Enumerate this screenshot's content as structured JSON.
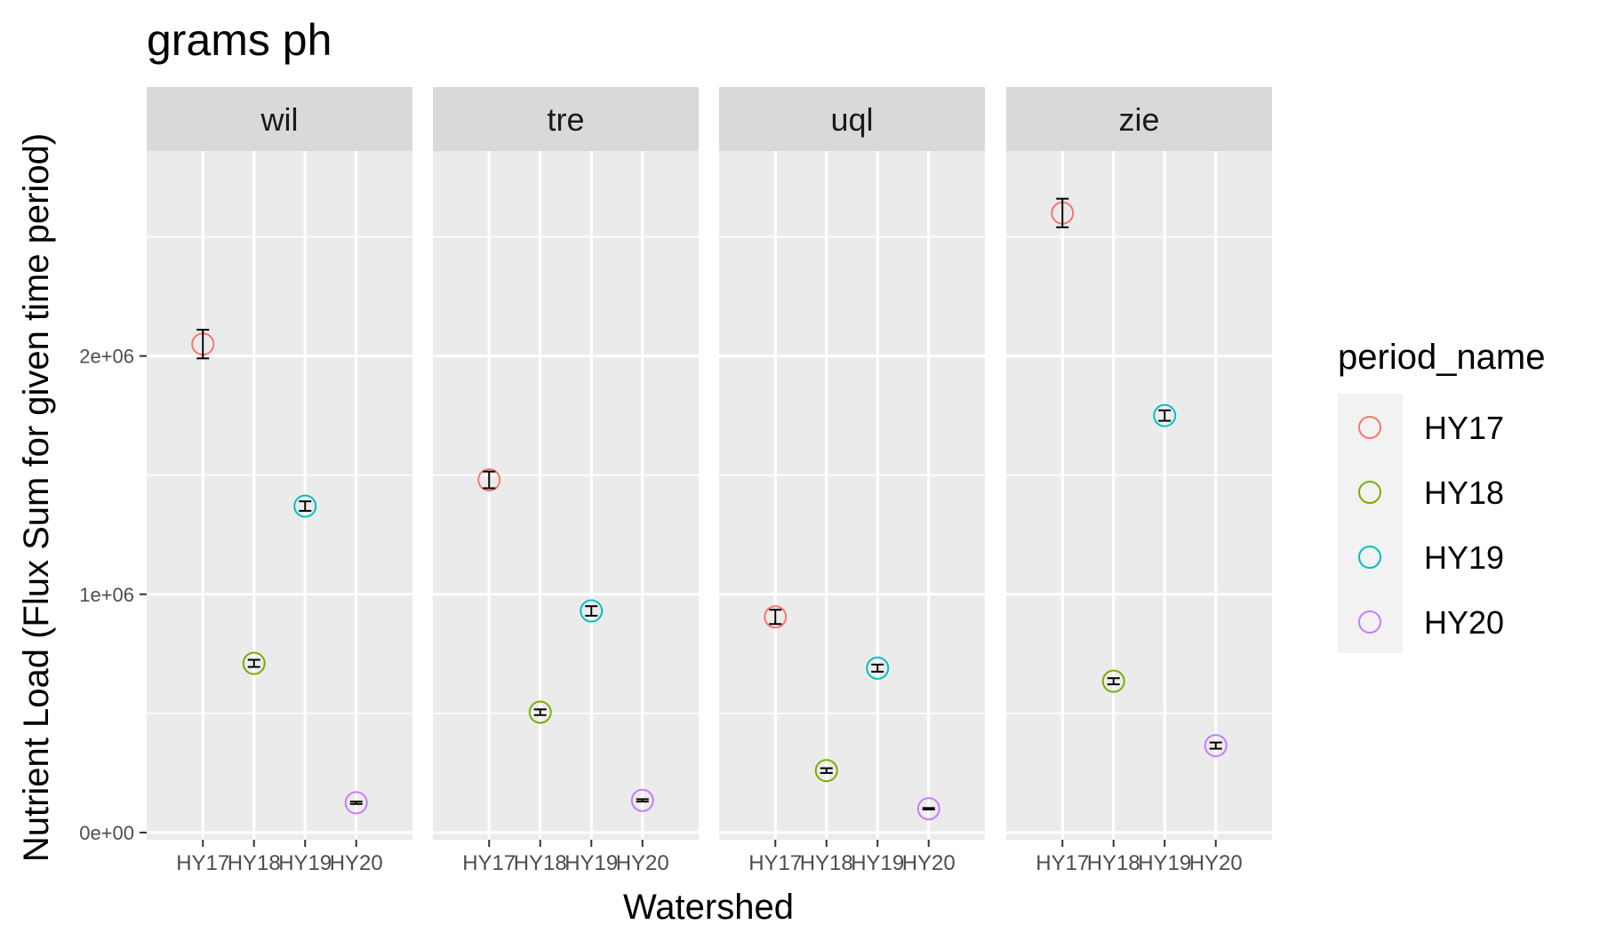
{
  "chart_data": {
    "type": "scatter",
    "title": "grams ph",
    "xlabel": "Watershed",
    "ylabel": "Nutrient Load (Flux Sum for given time period)",
    "ylim": [
      -30000,
      2860000
    ],
    "y_ticks": [
      0,
      1000000,
      2000000
    ],
    "y_tick_labels": [
      "0e+00",
      "1e+06",
      "2e+06"
    ],
    "y_minor_ticks": [
      500000,
      1500000,
      2500000
    ],
    "categories": [
      "HY17",
      "HY18",
      "HY19",
      "HY20"
    ],
    "grid": true,
    "legend": {
      "title": "period_name",
      "position": "right",
      "entries": [
        "HY17",
        "HY18",
        "HY19",
        "HY20"
      ]
    },
    "colors": {
      "HY17": "#F8766D",
      "HY18": "#7CAE00",
      "HY19": "#00BFC4",
      "HY20": "#C77CFF",
      "panel_bg": "#EBEBEB",
      "strip_bg": "#D9D9D9",
      "grid": "#FFFFFF",
      "errorbar": "#000000"
    },
    "facets": [
      {
        "name": "wil",
        "points": [
          {
            "x": "HY17",
            "y": 2050000,
            "ymin": 1990000,
            "ymax": 2110000
          },
          {
            "x": "HY18",
            "y": 710000,
            "ymin": 695000,
            "ymax": 725000
          },
          {
            "x": "HY19",
            "y": 1370000,
            "ymin": 1350000,
            "ymax": 1390000
          },
          {
            "x": "HY20",
            "y": 125000,
            "ymin": 120000,
            "ymax": 130000
          }
        ]
      },
      {
        "name": "tre",
        "points": [
          {
            "x": "HY17",
            "y": 1480000,
            "ymin": 1445000,
            "ymax": 1515000
          },
          {
            "x": "HY18",
            "y": 505000,
            "ymin": 493000,
            "ymax": 517000
          },
          {
            "x": "HY19",
            "y": 930000,
            "ymin": 910000,
            "ymax": 950000
          },
          {
            "x": "HY20",
            "y": 135000,
            "ymin": 130000,
            "ymax": 140000
          }
        ]
      },
      {
        "name": "uql",
        "points": [
          {
            "x": "HY17",
            "y": 905000,
            "ymin": 875000,
            "ymax": 935000
          },
          {
            "x": "HY18",
            "y": 260000,
            "ymin": 250000,
            "ymax": 270000
          },
          {
            "x": "HY19",
            "y": 690000,
            "ymin": 675000,
            "ymax": 705000
          },
          {
            "x": "HY20",
            "y": 100000,
            "ymin": 97000,
            "ymax": 103000
          }
        ]
      },
      {
        "name": "zie",
        "points": [
          {
            "x": "HY17",
            "y": 2600000,
            "ymin": 2540000,
            "ymax": 2660000
          },
          {
            "x": "HY18",
            "y": 635000,
            "ymin": 622000,
            "ymax": 648000
          },
          {
            "x": "HY19",
            "y": 1750000,
            "ymin": 1728000,
            "ymax": 1772000
          },
          {
            "x": "HY20",
            "y": 365000,
            "ymin": 352000,
            "ymax": 378000
          }
        ]
      }
    ]
  }
}
